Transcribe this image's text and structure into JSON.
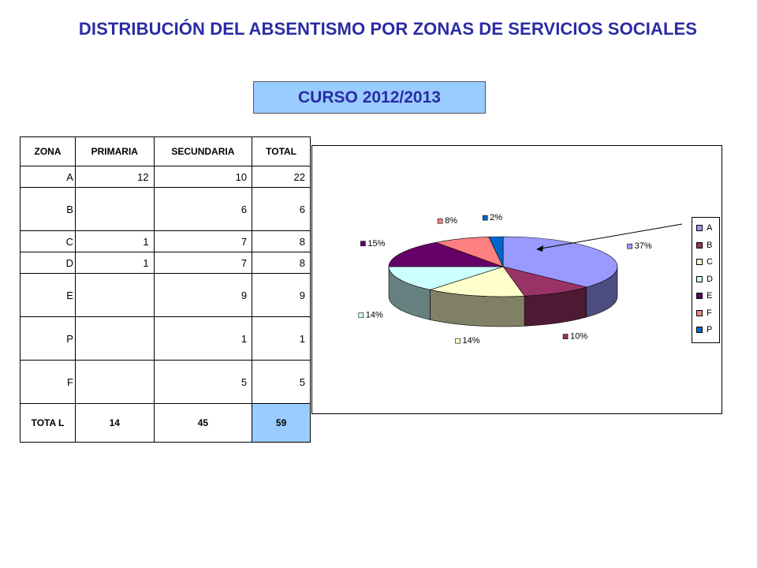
{
  "header": {
    "title": "DISTRIBUCIÓN DEL ABSENTISMO POR ZONAS DE SERVICIOS SOCIALES",
    "course": "CURSO 2012/2013"
  },
  "table": {
    "columns": [
      "ZONA",
      "PRIMARIA",
      "SECUNDARIA",
      "TOTAL"
    ],
    "rows": [
      {
        "zona": "A",
        "primaria": "12",
        "secundaria": "10",
        "total": "22"
      },
      {
        "zona": "B",
        "primaria": "",
        "secundaria": "6",
        "total": "6"
      },
      {
        "zona": "C",
        "primaria": "1",
        "secundaria": "7",
        "total": "8"
      },
      {
        "zona": "D",
        "primaria": "1",
        "secundaria": "7",
        "total": "8"
      },
      {
        "zona": "E",
        "primaria": "",
        "secundaria": "9",
        "total": "9"
      },
      {
        "zona": "P",
        "primaria": "",
        "secundaria": "1",
        "total": "1"
      },
      {
        "zona": "F",
        "primaria": "",
        "secundaria": "5",
        "total": "5"
      }
    ],
    "total_row": {
      "label": "TOTA L",
      "primaria": "14",
      "secundaria": "45",
      "total": "59"
    }
  },
  "chart_data": {
    "type": "pie",
    "style": "3d",
    "categories": [
      "A",
      "B",
      "C",
      "D",
      "E",
      "F",
      "P"
    ],
    "values": [
      37,
      10,
      14,
      14,
      15,
      8,
      2
    ],
    "value_labels": [
      "37%",
      "10%",
      "14%",
      "14%",
      "15%",
      "8%",
      "2%"
    ],
    "colors": [
      "#9999ff",
      "#993366",
      "#ffffcc",
      "#ccffff",
      "#660066",
      "#ff8080",
      "#0066cc"
    ],
    "legend": [
      "A",
      "B",
      "C",
      "D",
      "E",
      "F",
      "P"
    ],
    "legend_position": "right"
  }
}
